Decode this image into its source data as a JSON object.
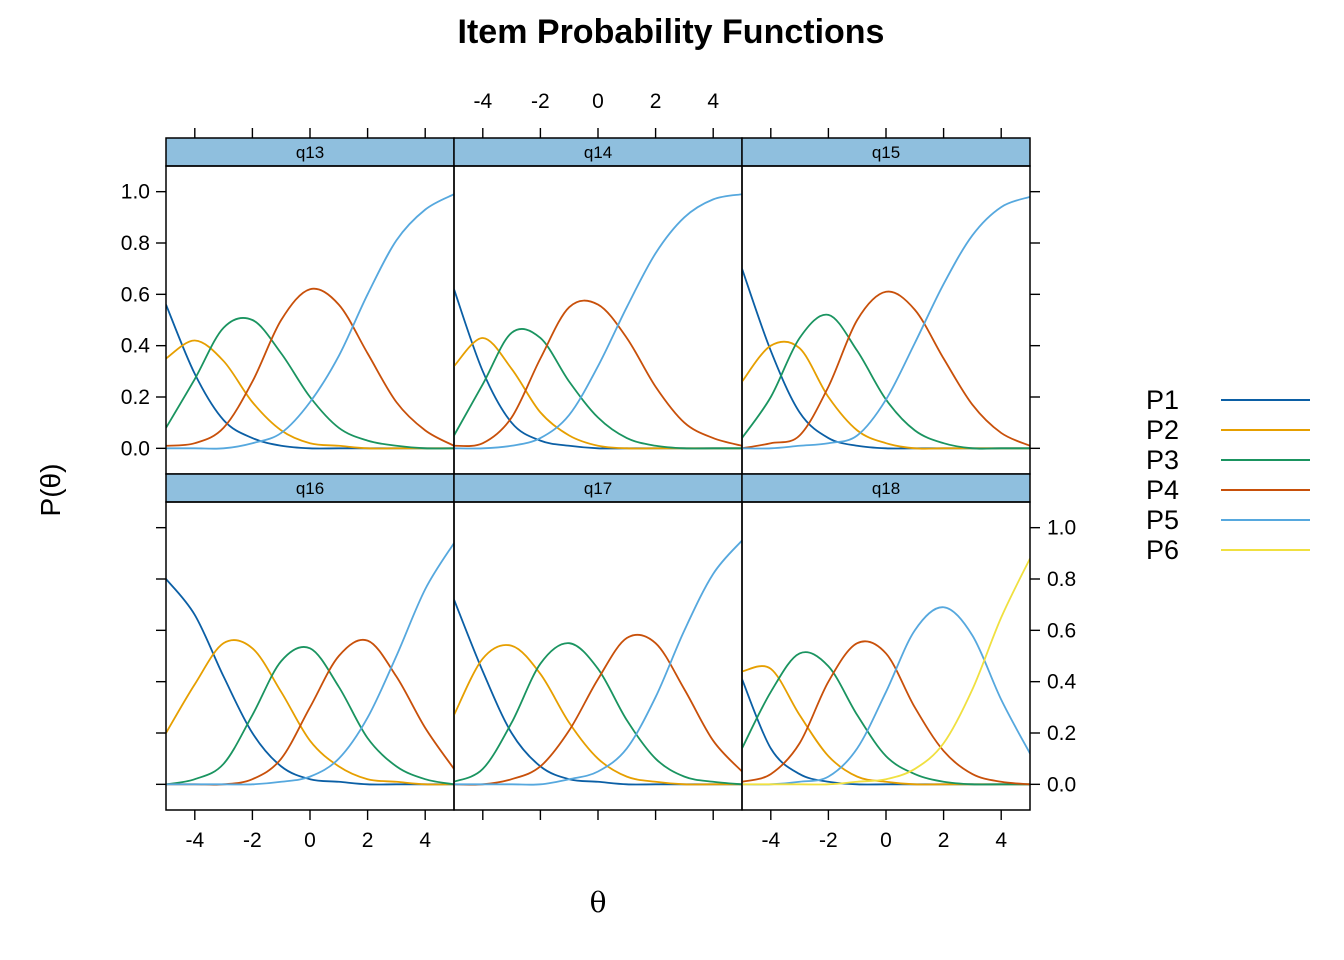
{
  "chart_data": {
    "type": "line",
    "title": "Item Probability Functions",
    "xlabel": "θ",
    "ylabel": "P(θ)",
    "xlim": [
      -5,
      5
    ],
    "ylim": [
      -0.1,
      1.1
    ],
    "x_ticks": [
      -4,
      -2,
      0,
      2,
      4
    ],
    "y_ticks": [
      0.0,
      0.2,
      0.4,
      0.6,
      0.8,
      1.0
    ],
    "x_tick_labels": [
      "-4",
      "-2",
      "0",
      "2",
      "4"
    ],
    "y_tick_labels": [
      "0.0",
      "0.2",
      "0.4",
      "0.6",
      "0.8",
      "1.0"
    ],
    "grid": false,
    "legend_position": "right",
    "legend": [
      "P1",
      "P2",
      "P3",
      "P4",
      "P5",
      "P6"
    ],
    "colors": {
      "P1": "#0b5fa5",
      "P2": "#e69f00",
      "P3": "#1a9460",
      "P4": "#c8500a",
      "P5": "#56a8de",
      "P6": "#f0e040",
      "strip": "#8fbfde"
    },
    "x": [
      -5,
      -4,
      -3,
      -2,
      -1,
      0,
      1,
      2,
      3,
      4,
      5
    ],
    "panels": [
      {
        "name": "q13",
        "series": [
          {
            "name": "P1",
            "values": [
              0.56,
              0.29,
              0.11,
              0.04,
              0.01,
              0.0,
              0.0,
              0.0,
              0.0,
              0.0,
              0.0
            ]
          },
          {
            "name": "P2",
            "values": [
              0.35,
              0.42,
              0.34,
              0.18,
              0.07,
              0.02,
              0.01,
              0.0,
              0.0,
              0.0,
              0.0
            ]
          },
          {
            "name": "P3",
            "values": [
              0.08,
              0.27,
              0.47,
              0.5,
              0.37,
              0.2,
              0.08,
              0.03,
              0.01,
              0.0,
              0.0
            ]
          },
          {
            "name": "P4",
            "values": [
              0.01,
              0.02,
              0.08,
              0.26,
              0.5,
              0.62,
              0.56,
              0.37,
              0.18,
              0.07,
              0.01
            ]
          },
          {
            "name": "P5",
            "values": [
              0.0,
              0.0,
              0.0,
              0.02,
              0.06,
              0.18,
              0.36,
              0.6,
              0.81,
              0.93,
              0.99
            ]
          }
        ]
      },
      {
        "name": "q14",
        "series": [
          {
            "name": "P1",
            "values": [
              0.62,
              0.3,
              0.1,
              0.03,
              0.01,
              0.0,
              0.0,
              0.0,
              0.0,
              0.0,
              0.0
            ]
          },
          {
            "name": "P2",
            "values": [
              0.32,
              0.43,
              0.31,
              0.14,
              0.05,
              0.01,
              0.0,
              0.0,
              0.0,
              0.0,
              0.0
            ]
          },
          {
            "name": "P3",
            "values": [
              0.05,
              0.25,
              0.45,
              0.43,
              0.26,
              0.12,
              0.04,
              0.01,
              0.0,
              0.0,
              0.0
            ]
          },
          {
            "name": "P4",
            "values": [
              0.01,
              0.02,
              0.12,
              0.35,
              0.55,
              0.56,
              0.43,
              0.24,
              0.1,
              0.04,
              0.01
            ]
          },
          {
            "name": "P5",
            "values": [
              0.0,
              0.0,
              0.01,
              0.04,
              0.13,
              0.32,
              0.55,
              0.76,
              0.9,
              0.97,
              0.99
            ]
          }
        ]
      },
      {
        "name": "q15",
        "series": [
          {
            "name": "P1",
            "values": [
              0.7,
              0.38,
              0.14,
              0.04,
              0.01,
              0.0,
              0.0,
              0.0,
              0.0,
              0.0,
              0.0
            ]
          },
          {
            "name": "P2",
            "values": [
              0.26,
              0.4,
              0.39,
              0.2,
              0.07,
              0.02,
              0.0,
              0.0,
              0.0,
              0.0,
              0.0
            ]
          },
          {
            "name": "P3",
            "values": [
              0.04,
              0.2,
              0.43,
              0.52,
              0.38,
              0.19,
              0.07,
              0.02,
              0.0,
              0.0,
              0.0
            ]
          },
          {
            "name": "P4",
            "values": [
              0.0,
              0.02,
              0.05,
              0.24,
              0.5,
              0.61,
              0.54,
              0.35,
              0.17,
              0.06,
              0.01
            ]
          },
          {
            "name": "P5",
            "values": [
              0.0,
              0.0,
              0.01,
              0.02,
              0.05,
              0.19,
              0.41,
              0.64,
              0.83,
              0.94,
              0.98
            ]
          }
        ]
      },
      {
        "name": "q16",
        "series": [
          {
            "name": "P1",
            "values": [
              0.8,
              0.66,
              0.42,
              0.2,
              0.07,
              0.02,
              0.01,
              0.0,
              0.0,
              0.0,
              0.0
            ]
          },
          {
            "name": "P2",
            "values": [
              0.2,
              0.39,
              0.55,
              0.53,
              0.36,
              0.17,
              0.07,
              0.02,
              0.01,
              0.0,
              0.0
            ]
          },
          {
            "name": "P3",
            "values": [
              0.0,
              0.02,
              0.08,
              0.27,
              0.48,
              0.53,
              0.38,
              0.18,
              0.07,
              0.02,
              0.0
            ]
          },
          {
            "name": "P4",
            "values": [
              0.0,
              0.0,
              0.0,
              0.02,
              0.1,
              0.3,
              0.5,
              0.56,
              0.42,
              0.22,
              0.06
            ]
          },
          {
            "name": "P5",
            "values": [
              0.0,
              0.0,
              0.0,
              0.0,
              0.01,
              0.03,
              0.1,
              0.26,
              0.5,
              0.76,
              0.94
            ]
          }
        ]
      },
      {
        "name": "q17",
        "series": [
          {
            "name": "P1",
            "values": [
              0.72,
              0.44,
              0.2,
              0.07,
              0.02,
              0.01,
              0.0,
              0.0,
              0.0,
              0.0,
              0.0
            ]
          },
          {
            "name": "P2",
            "values": [
              0.27,
              0.49,
              0.54,
              0.43,
              0.24,
              0.1,
              0.03,
              0.01,
              0.0,
              0.0,
              0.0
            ]
          },
          {
            "name": "P3",
            "values": [
              0.01,
              0.06,
              0.24,
              0.47,
              0.55,
              0.45,
              0.25,
              0.1,
              0.03,
              0.01,
              0.0
            ]
          },
          {
            "name": "P4",
            "values": [
              0.0,
              0.0,
              0.02,
              0.07,
              0.21,
              0.41,
              0.57,
              0.55,
              0.37,
              0.17,
              0.05
            ]
          },
          {
            "name": "P5",
            "values": [
              0.0,
              0.0,
              0.0,
              0.0,
              0.02,
              0.05,
              0.14,
              0.34,
              0.6,
              0.82,
              0.95
            ]
          }
        ]
      },
      {
        "name": "q18",
        "series": [
          {
            "name": "P1",
            "values": [
              0.41,
              0.14,
              0.04,
              0.01,
              0.0,
              0.0,
              0.0,
              0.0,
              0.0,
              0.0,
              0.0
            ]
          },
          {
            "name": "P2",
            "values": [
              0.44,
              0.45,
              0.27,
              0.11,
              0.03,
              0.01,
              0.0,
              0.0,
              0.0,
              0.0,
              0.0
            ]
          },
          {
            "name": "P3",
            "values": [
              0.14,
              0.36,
              0.51,
              0.46,
              0.27,
              0.11,
              0.04,
              0.01,
              0.0,
              0.0,
              0.0
            ]
          },
          {
            "name": "P4",
            "values": [
              0.01,
              0.04,
              0.16,
              0.4,
              0.55,
              0.51,
              0.3,
              0.13,
              0.04,
              0.01,
              0.0
            ]
          },
          {
            "name": "P5",
            "values": [
              0.0,
              0.0,
              0.01,
              0.03,
              0.14,
              0.36,
              0.6,
              0.69,
              0.58,
              0.33,
              0.12
            ]
          },
          {
            "name": "P6",
            "values": [
              0.0,
              0.0,
              0.0,
              0.0,
              0.01,
              0.02,
              0.06,
              0.16,
              0.37,
              0.65,
              0.88
            ]
          }
        ]
      }
    ]
  }
}
